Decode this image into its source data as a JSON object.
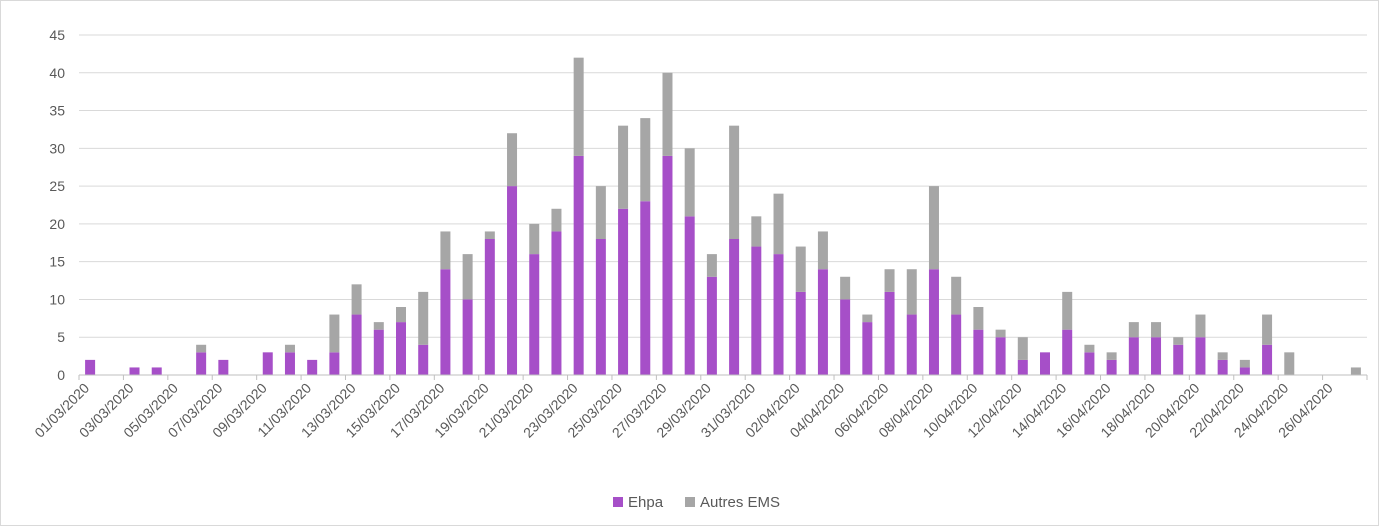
{
  "chart_data": {
    "type": "bar",
    "stacked": true,
    "title": "",
    "xlabel": "",
    "ylabel": "",
    "ylim": [
      0,
      45
    ],
    "yticks": [
      0,
      5,
      10,
      15,
      20,
      25,
      30,
      35,
      40,
      45
    ],
    "grid": true,
    "legend_position": "bottom",
    "categories": [
      "01/03/2020",
      "02/03/2020",
      "03/03/2020",
      "04/03/2020",
      "05/03/2020",
      "06/03/2020",
      "07/03/2020",
      "08/03/2020",
      "09/03/2020",
      "10/03/2020",
      "11/03/2020",
      "12/03/2020",
      "13/03/2020",
      "14/03/2020",
      "15/03/2020",
      "16/03/2020",
      "17/03/2020",
      "18/03/2020",
      "19/03/2020",
      "20/03/2020",
      "21/03/2020",
      "22/03/2020",
      "23/03/2020",
      "24/03/2020",
      "25/03/2020",
      "26/03/2020",
      "27/03/2020",
      "28/03/2020",
      "29/03/2020",
      "30/03/2020",
      "31/03/2020",
      "01/04/2020",
      "02/04/2020",
      "03/04/2020",
      "04/04/2020",
      "05/04/2020",
      "06/04/2020",
      "07/04/2020",
      "08/04/2020",
      "09/04/2020",
      "10/04/2020",
      "11/04/2020",
      "12/04/2020",
      "13/04/2020",
      "14/04/2020",
      "15/04/2020",
      "16/04/2020",
      "17/04/2020",
      "18/04/2020",
      "19/04/2020",
      "20/04/2020",
      "21/04/2020",
      "22/04/2020",
      "23/04/2020",
      "24/04/2020",
      "25/04/2020",
      "26/04/2020",
      "27/04/2020"
    ],
    "tick_labels": [
      "01/03/2020",
      "03/03/2020",
      "05/03/2020",
      "07/03/2020",
      "09/03/2020",
      "11/03/2020",
      "13/03/2020",
      "15/03/2020",
      "17/03/2020",
      "19/03/2020",
      "21/03/2020",
      "23/03/2020",
      "25/03/2020",
      "27/03/2020",
      "29/03/2020",
      "31/03/2020",
      "02/04/2020",
      "04/04/2020",
      "06/04/2020",
      "08/04/2020",
      "10/04/2020",
      "12/04/2020",
      "14/04/2020",
      "16/04/2020",
      "18/04/2020",
      "20/04/2020",
      "22/04/2020",
      "24/04/2020",
      "26/04/2020"
    ],
    "series": [
      {
        "name": "Ehpa",
        "color": "#a64fc8",
        "values": [
          2,
          0,
          1,
          1,
          0,
          3,
          2,
          0,
          3,
          3,
          2,
          3,
          8,
          6,
          7,
          4,
          14,
          10,
          18,
          25,
          16,
          19,
          29,
          18,
          22,
          23,
          29,
          21,
          13,
          18,
          17,
          16,
          11,
          14,
          10,
          7,
          11,
          8,
          14,
          8,
          6,
          5,
          2,
          3,
          6,
          3,
          2,
          5,
          5,
          4,
          5,
          2,
          1,
          4,
          0,
          0,
          0,
          0
        ]
      },
      {
        "name": "Autres EMS",
        "color": "#a6a6a6",
        "values": [
          0,
          0,
          0,
          0,
          0,
          1,
          0,
          0,
          0,
          1,
          0,
          5,
          4,
          1,
          2,
          7,
          5,
          6,
          1,
          7,
          4,
          3,
          13,
          7,
          11,
          11,
          11,
          9,
          3,
          15,
          4,
          8,
          6,
          5,
          3,
          1,
          3,
          6,
          11,
          5,
          3,
          1,
          3,
          0,
          5,
          1,
          1,
          2,
          2,
          1,
          3,
          1,
          1,
          4,
          3,
          0,
          0,
          1
        ]
      }
    ]
  }
}
